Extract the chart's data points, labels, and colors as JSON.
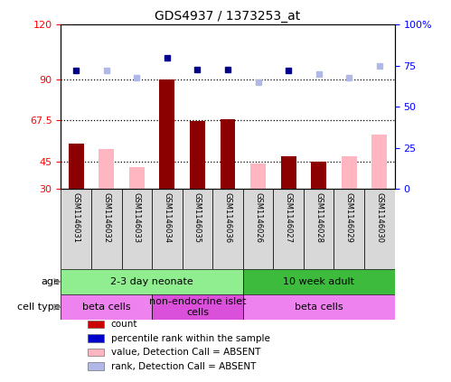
{
  "title": "GDS4937 / 1373253_at",
  "samples": [
    "GSM1146031",
    "GSM1146032",
    "GSM1146033",
    "GSM1146034",
    "GSM1146035",
    "GSM1146036",
    "GSM1146026",
    "GSM1146027",
    "GSM1146028",
    "GSM1146029",
    "GSM1146030"
  ],
  "count_values": [
    55,
    null,
    null,
    90,
    67,
    68,
    null,
    48,
    45,
    null,
    null
  ],
  "count_absent": [
    null,
    52,
    42,
    null,
    null,
    null,
    44,
    null,
    null,
    48,
    60
  ],
  "rank_present": [
    72,
    null,
    null,
    80,
    73,
    73,
    null,
    72,
    null,
    null,
    null
  ],
  "rank_absent": [
    null,
    72,
    68,
    null,
    null,
    null,
    65,
    null,
    70,
    68,
    75
  ],
  "ylim_left": [
    30,
    120
  ],
  "ylim_right": [
    0,
    100
  ],
  "yticks_left": [
    30,
    45,
    67.5,
    90,
    120
  ],
  "yticks_right": [
    0,
    25,
    50,
    75,
    100
  ],
  "hlines": [
    45,
    67.5,
    90
  ],
  "age_groups": [
    {
      "label": "2-3 day neonate",
      "start": 0,
      "end": 6,
      "color": "#90ee90"
    },
    {
      "label": "10 week adult",
      "start": 6,
      "end": 11,
      "color": "#3dbb3d"
    }
  ],
  "cell_groups": [
    {
      "label": "beta cells",
      "start": 0,
      "end": 3,
      "color": "#ee82ee"
    },
    {
      "label": "non-endocrine islet\ncells",
      "start": 3,
      "end": 6,
      "color": "#da50da"
    },
    {
      "label": "beta cells",
      "start": 6,
      "end": 11,
      "color": "#ee82ee"
    }
  ],
  "color_count_present": "#8b0000",
  "color_count_absent": "#ffb6c1",
  "color_rank_present": "#00008b",
  "color_rank_absent": "#b0b8e8",
  "legend_items": [
    {
      "label": "count",
      "color": "#cc0000"
    },
    {
      "label": "percentile rank within the sample",
      "color": "#0000cc"
    },
    {
      "label": "value, Detection Call = ABSENT",
      "color": "#ffb6c1"
    },
    {
      "label": "rank, Detection Call = ABSENT",
      "color": "#b0b8e8"
    }
  ],
  "bar_width": 0.5,
  "label_fontsize": 6.0,
  "axis_fontsize": 8
}
